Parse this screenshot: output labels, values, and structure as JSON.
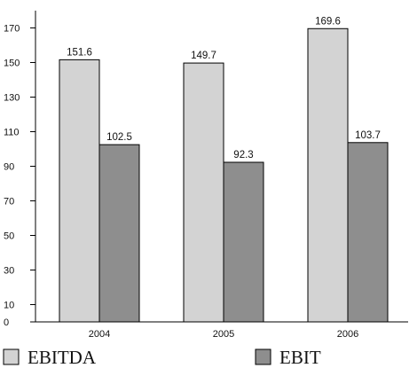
{
  "chart_data": {
    "type": "bar",
    "title": "",
    "xlabel": "",
    "ylabel": "",
    "categories": [
      "2004",
      "2005",
      "2006"
    ],
    "series": [
      {
        "name": "EBITDA",
        "values": [
          151.6,
          149.7,
          169.6
        ],
        "color": "#d3d3d3"
      },
      {
        "name": "EBIT",
        "values": [
          102.5,
          92.3,
          103.7
        ],
        "color": "#8e8e8e"
      }
    ],
    "yticks": [
      0,
      10,
      30,
      50,
      70,
      90,
      110,
      130,
      150,
      170
    ],
    "ylim": [
      0,
      180
    ],
    "grid": false,
    "legend_position": "bottom"
  }
}
